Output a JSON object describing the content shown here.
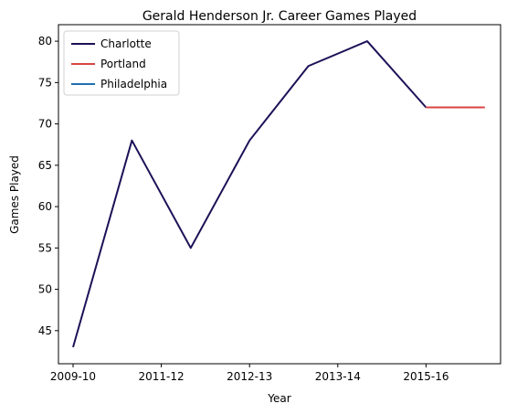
{
  "chart_data": {
    "type": "line",
    "title": "Gerald Henderson Jr. Career Games Played",
    "xlabel": "Year",
    "ylabel": "Games Played",
    "x_tick_labels": [
      "2009-10",
      "2011-12",
      "2012-13",
      "2013-14",
      "2015-16"
    ],
    "ylim": [
      41,
      82
    ],
    "y_ticks": [
      45,
      50,
      55,
      60,
      65,
      70,
      75,
      80
    ],
    "grid": false,
    "legend_position": "top-left",
    "series": [
      {
        "name": "Charlotte",
        "color": "#1b1257",
        "x": [
          0,
          1,
          2,
          3,
          4,
          5,
          6
        ],
        "values": [
          43,
          68,
          55,
          68,
          77,
          80,
          72
        ]
      },
      {
        "name": "Portland",
        "color": "#d94545",
        "x": [
          6,
          7
        ],
        "values": [
          72,
          72
        ]
      },
      {
        "name": "Philadelphia",
        "color": "#1f6fb4",
        "x": [],
        "values": []
      }
    ]
  }
}
